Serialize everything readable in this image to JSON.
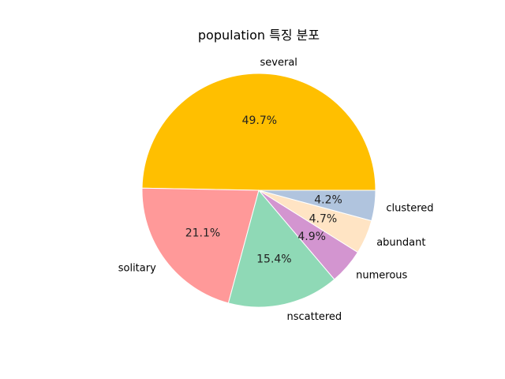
{
  "chart_data": {
    "type": "pie",
    "title": "population 특징 분포",
    "categories": [
      "several",
      "solitary",
      "nscattered",
      "numerous",
      "abundant",
      "clustered"
    ],
    "values": [
      49.7,
      21.1,
      15.4,
      4.9,
      4.7,
      4.2
    ],
    "percent_labels": [
      "49.7%",
      "21.1%",
      "15.4%",
      "4.9%",
      "4.7%",
      "4.2%"
    ],
    "colors": [
      "#FFBF00",
      "#FF9999",
      "#8FD9B6",
      "#D395D0",
      "#FFE4C4",
      "#B0C4DE"
    ],
    "start_angle_deg": 0,
    "direction": "counterclockwise",
    "legend": "none"
  }
}
